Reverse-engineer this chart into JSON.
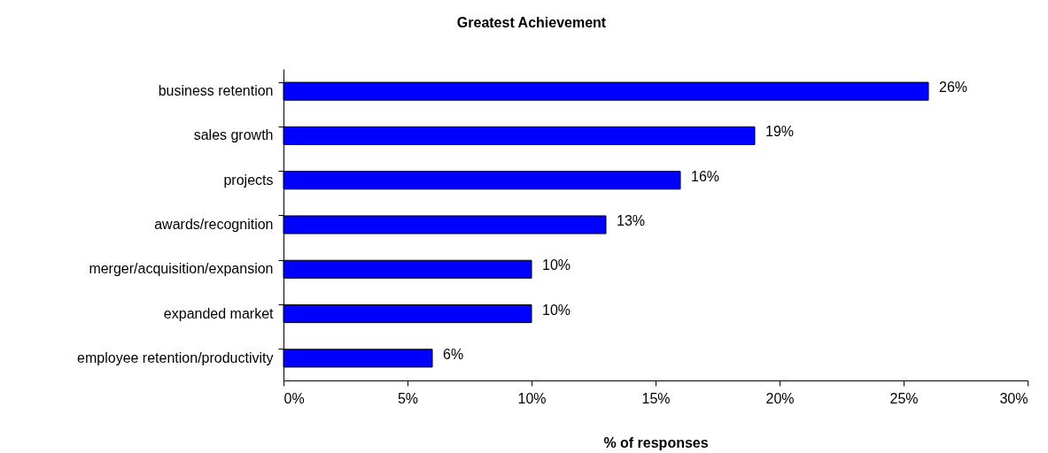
{
  "chart_data": {
    "type": "bar",
    "orientation": "horizontal",
    "title": "Greatest Achievement",
    "xlabel": "% of responses",
    "categories": [
      "business retention",
      "sales growth",
      "projects",
      "awards/recognition",
      "merger/acquisition/expansion",
      "expanded market",
      "employee retention/productivity"
    ],
    "values": [
      26,
      19,
      16,
      13,
      10,
      10,
      6
    ],
    "color": "#0000ff",
    "value_labels": [
      "26%",
      "19%",
      "16%",
      "13%",
      "10%",
      "10%",
      "6%"
    ],
    "xlim": [
      0,
      30
    ],
    "xticks": [
      {
        "value": 0,
        "label": "0%"
      },
      {
        "value": 5,
        "label": "5%"
      },
      {
        "value": 10,
        "label": "10%"
      },
      {
        "value": 15,
        "label": "15%"
      },
      {
        "value": 20,
        "label": "20%"
      },
      {
        "value": 25,
        "label": "25%"
      },
      {
        "value": 30,
        "label": "30%"
      }
    ]
  }
}
